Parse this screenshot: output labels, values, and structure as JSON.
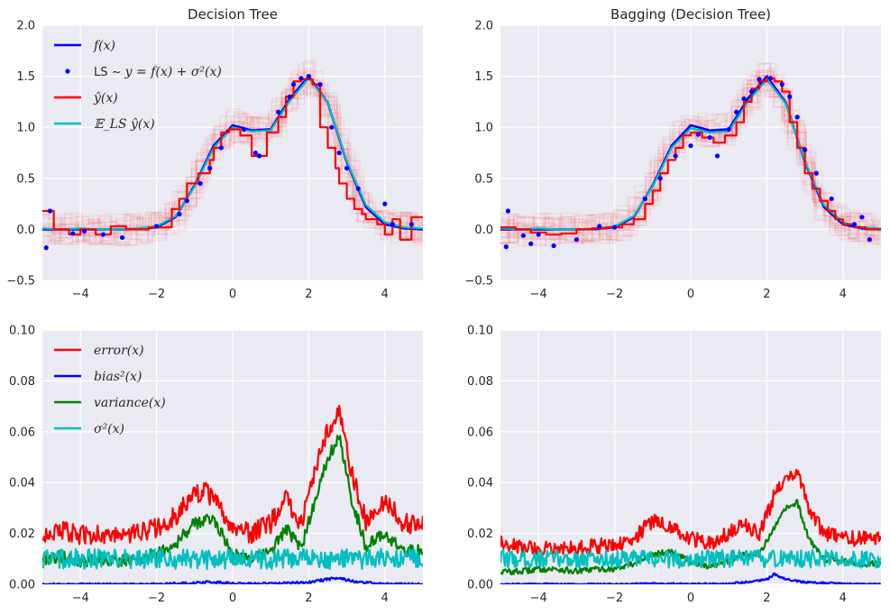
{
  "chart_data": [
    {
      "id": "p1",
      "type": "line",
      "title": "Decision Tree",
      "xlim": [
        -5,
        5
      ],
      "ylim": [
        -0.5,
        2.0
      ],
      "xticks": [
        -4,
        -2,
        0,
        2,
        4
      ],
      "xtick_labels": [
        "−4",
        "−2",
        "0",
        "2",
        "4"
      ],
      "yticks": [
        -0.5,
        0.0,
        0.5,
        1.0,
        1.5,
        2.0
      ],
      "ytick_labels": [
        "−0.5",
        "0.0",
        "0.5",
        "1.0",
        "1.5",
        "2.0"
      ],
      "legend": {
        "placement": "top-left",
        "entries": [
          {
            "label": "f(x)",
            "color": "#0000ff",
            "kind": "line"
          },
          {
            "label_prefix": "LS ~ ",
            "label": "y = f(x) + σ²(x)",
            "color": "#0000ff",
            "kind": "dot"
          },
          {
            "label": "ŷ(x)",
            "color": "#ff0000",
            "kind": "line"
          },
          {
            "label": "𝔼_LS ŷ(x)",
            "color": "#00bfbf",
            "kind": "line"
          }
        ]
      },
      "series": [
        {
          "name": "f(x)",
          "color": "#0000ff",
          "x": [
            -5,
            -4.5,
            -4,
            -3.5,
            -3,
            -2.5,
            -2,
            -1.5,
            -1,
            -0.5,
            0,
            0.5,
            1,
            1.5,
            2,
            2.5,
            3,
            3.5,
            4,
            4.5,
            5
          ],
          "values": [
            0,
            0,
            0,
            0,
            0,
            0.003,
            0.02,
            0.12,
            0.43,
            0.82,
            1.02,
            0.97,
            0.98,
            1.28,
            1.5,
            1.24,
            0.66,
            0.22,
            0.05,
            0.01,
            0
          ]
        },
        {
          "name": "E_LS y_hat(x)",
          "color": "#00bfbf",
          "x": [
            -5,
            -4.5,
            -4,
            -3.5,
            -3,
            -2.5,
            -2,
            -1.5,
            -1,
            -0.5,
            0,
            0.5,
            1,
            1.5,
            2,
            2.5,
            3,
            3.5,
            4,
            4.5,
            5
          ],
          "values": [
            0.01,
            0.0,
            0.01,
            0.0,
            0.0,
            0.01,
            0.03,
            0.13,
            0.42,
            0.8,
            1.0,
            0.96,
            0.97,
            1.26,
            1.48,
            1.24,
            0.67,
            0.24,
            0.07,
            0.02,
            0.01
          ]
        },
        {
          "name": "y_hat(x)",
          "color": "#ff0000",
          "step": true,
          "x": [
            -5,
            -4.7,
            -4.3,
            -4.0,
            -3.6,
            -3.2,
            -2.8,
            -2.2,
            -1.6,
            -1.4,
            -1.2,
            -0.9,
            -0.6,
            -0.5,
            -0.3,
            -0.1,
            0.2,
            0.5,
            0.9,
            1.2,
            1.4,
            1.6,
            1.8,
            2.1,
            2.3,
            2.5,
            2.7,
            2.8,
            3.0,
            3.2,
            3.4,
            3.5,
            3.8,
            4.0,
            4.2,
            4.4,
            4.7,
            5.0
          ],
          "values": [
            0.18,
            0.0,
            -0.05,
            0.0,
            -0.05,
            0.03,
            0.0,
            0.02,
            0.2,
            0.3,
            0.45,
            0.55,
            0.68,
            0.8,
            0.95,
            0.98,
            0.92,
            0.72,
            0.95,
            1.1,
            1.3,
            1.45,
            1.47,
            1.42,
            1.0,
            0.8,
            0.6,
            0.45,
            0.3,
            0.2,
            0.15,
            0.1,
            0.05,
            -0.05,
            0.1,
            -0.1,
            0.12,
            0.12
          ]
        }
      ],
      "scatter": {
        "name": "LS",
        "color": "#0000ff",
        "x": [
          -4.9,
          -4.8,
          -4.2,
          -3.9,
          -3.4,
          -2.9,
          -2.0,
          -1.4,
          -1.2,
          -0.85,
          -0.6,
          -0.3,
          0.3,
          0.6,
          0.7,
          1.2,
          1.5,
          1.6,
          1.8,
          2.0,
          2.3,
          2.6,
          2.8,
          3.0,
          3.3,
          4.0,
          4.2,
          4.7
        ],
        "y": [
          -0.18,
          0.18,
          -0.04,
          -0.02,
          -0.05,
          -0.08,
          0.03,
          0.15,
          0.28,
          0.45,
          0.6,
          0.8,
          0.98,
          0.75,
          0.72,
          1.15,
          1.3,
          1.42,
          1.48,
          1.5,
          1.42,
          1.0,
          0.75,
          0.6,
          0.4,
          0.25,
          0.05,
          0.05
        ]
      },
      "noise_lines": 22
    },
    {
      "id": "p2",
      "type": "line",
      "title": "Bagging (Decision Tree)",
      "xlim": [
        -5,
        5
      ],
      "ylim": [
        -0.5,
        2.0
      ],
      "xticks": [
        -4,
        -2,
        0,
        2,
        4
      ],
      "xtick_labels": [
        "−4",
        "−2",
        "0",
        "2",
        "4"
      ],
      "yticks": [
        -0.5,
        0.0,
        0.5,
        1.0,
        1.5,
        2.0
      ],
      "ytick_labels": [
        "−0.5",
        "0.0",
        "0.5",
        "1.0",
        "1.5",
        "2.0"
      ],
      "series": [
        {
          "name": "f(x)",
          "color": "#0000ff",
          "x": [
            -5,
            -4.5,
            -4,
            -3.5,
            -3,
            -2.5,
            -2,
            -1.5,
            -1,
            -0.5,
            0,
            0.5,
            1,
            1.5,
            2,
            2.5,
            3,
            3.5,
            4,
            4.5,
            5
          ],
          "values": [
            0,
            0,
            0,
            0,
            0,
            0.003,
            0.02,
            0.12,
            0.43,
            0.82,
            1.02,
            0.97,
            0.98,
            1.28,
            1.5,
            1.24,
            0.66,
            0.22,
            0.05,
            0.01,
            0
          ]
        },
        {
          "name": "E_LS y_hat(x)",
          "color": "#00bfbf",
          "x": [
            -5,
            -4.5,
            -4,
            -3.5,
            -3,
            -2.5,
            -2,
            -1.5,
            -1,
            -0.5,
            0,
            0.5,
            1,
            1.5,
            2,
            2.5,
            3,
            3.5,
            4,
            4.5,
            5
          ],
          "values": [
            0.01,
            0.0,
            0.01,
            0.0,
            0.0,
            0.01,
            0.03,
            0.13,
            0.42,
            0.8,
            0.99,
            0.95,
            0.96,
            1.25,
            1.47,
            1.23,
            0.67,
            0.24,
            0.07,
            0.02,
            0.01
          ]
        },
        {
          "name": "y_hat(x)",
          "color": "#ff0000",
          "step": true,
          "x": [
            -5,
            -4.6,
            -4.2,
            -3.8,
            -3.4,
            -3.0,
            -2.6,
            -2.2,
            -1.8,
            -1.5,
            -1.2,
            -1.0,
            -0.8,
            -0.6,
            -0.4,
            -0.2,
            0.0,
            0.3,
            0.6,
            0.9,
            1.2,
            1.4,
            1.6,
            1.8,
            2.0,
            2.2,
            2.4,
            2.6,
            2.8,
            3.0,
            3.2,
            3.4,
            3.6,
            3.8,
            4.0,
            4.3,
            4.6,
            5.0
          ],
          "values": [
            0.02,
            0.0,
            -0.03,
            -0.05,
            -0.04,
            0.0,
            0.01,
            0.02,
            0.05,
            0.1,
            0.25,
            0.38,
            0.55,
            0.68,
            0.8,
            0.92,
            0.95,
            0.9,
            0.85,
            0.92,
            1.05,
            1.25,
            1.38,
            1.45,
            1.48,
            1.45,
            1.35,
            1.05,
            0.8,
            0.55,
            0.4,
            0.28,
            0.18,
            0.1,
            0.05,
            0.02,
            0.0,
            0.0
          ]
        }
      ],
      "scatter": {
        "name": "LS",
        "color": "#0000ff",
        "x": [
          -4.85,
          -4.8,
          -4.4,
          -4.2,
          -4.0,
          -3.6,
          -3.0,
          -2.4,
          -2.0,
          -1.2,
          -0.8,
          -0.4,
          0.0,
          0.2,
          0.5,
          0.7,
          1.0,
          1.2,
          1.4,
          1.6,
          1.8,
          2.1,
          2.4,
          2.6,
          2.8,
          3.0,
          3.3,
          3.7,
          4.3,
          4.5,
          4.7
        ],
        "y": [
          -0.17,
          0.18,
          -0.06,
          -0.14,
          -0.05,
          -0.16,
          -0.1,
          0.03,
          0.02,
          0.3,
          0.5,
          0.72,
          0.82,
          0.93,
          0.9,
          0.72,
          0.98,
          1.15,
          1.28,
          1.35,
          1.47,
          1.48,
          1.42,
          1.3,
          1.1,
          0.78,
          0.55,
          0.3,
          0.05,
          0.12,
          -0.1
        ]
      },
      "noise_lines": 22
    },
    {
      "id": "p3",
      "type": "line",
      "title": "",
      "xlim": [
        -5,
        5
      ],
      "ylim": [
        0.0,
        0.1
      ],
      "xticks": [
        -4,
        -2,
        0,
        2,
        4
      ],
      "xtick_labels": [
        "−4",
        "−2",
        "0",
        "2",
        "4"
      ],
      "yticks": [
        0.0,
        0.02,
        0.04,
        0.06,
        0.08,
        0.1
      ],
      "ytick_labels": [
        "0.00",
        "0.02",
        "0.04",
        "0.06",
        "0.08",
        "0.10"
      ],
      "legend": {
        "placement": "top-left",
        "entries": [
          {
            "label": "error(x)",
            "color": "#ff0000",
            "kind": "line"
          },
          {
            "label": "bias²(x)",
            "color": "#0000ff",
            "kind": "line"
          },
          {
            "label": "variance(x)",
            "color": "#008000",
            "kind": "line"
          },
          {
            "label": "σ²(x)",
            "color": "#00bfbf",
            "kind": "line"
          }
        ]
      },
      "series": [
        {
          "name": "error(x)",
          "color": "#ff0000",
          "jitter": 0.004,
          "x": [
            -5,
            -4.5,
            -4,
            -3.5,
            -3,
            -2.5,
            -2,
            -1.5,
            -1,
            -0.7,
            -0.4,
            0,
            0.5,
            1,
            1.4,
            1.8,
            2.2,
            2.5,
            2.8,
            3.1,
            3.5,
            4,
            4.5,
            5
          ],
          "values": [
            0.02,
            0.021,
            0.019,
            0.02,
            0.019,
            0.02,
            0.022,
            0.027,
            0.035,
            0.037,
            0.031,
            0.022,
            0.02,
            0.024,
            0.034,
            0.024,
            0.046,
            0.06,
            0.07,
            0.046,
            0.025,
            0.033,
            0.024,
            0.023
          ]
        },
        {
          "name": "bias²(x)",
          "color": "#0000ff",
          "jitter": 0.0005,
          "x": [
            -5,
            -4,
            -3,
            -2,
            -1,
            -0.6,
            0,
            1,
            2,
            2.5,
            2.8,
            3.2,
            4,
            5
          ],
          "values": [
            0.0,
            0.0,
            0.0,
            0.0,
            0.0005,
            0.001,
            0.0003,
            0.0002,
            0.0008,
            0.002,
            0.0025,
            0.001,
            0.0002,
            0.0
          ]
        },
        {
          "name": "variance(x)",
          "color": "#008000",
          "jitter": 0.0025,
          "x": [
            -5,
            -4.5,
            -4,
            -3.5,
            -3,
            -2.5,
            -2,
            -1.5,
            -1,
            -0.5,
            0,
            0.5,
            1,
            1.4,
            1.8,
            2.2,
            2.5,
            2.8,
            3.1,
            3.5,
            4,
            4.5,
            5
          ],
          "values": [
            0.01,
            0.011,
            0.009,
            0.01,
            0.009,
            0.01,
            0.012,
            0.016,
            0.024,
            0.026,
            0.012,
            0.01,
            0.013,
            0.022,
            0.014,
            0.035,
            0.05,
            0.058,
            0.035,
            0.015,
            0.02,
            0.013,
            0.013
          ]
        },
        {
          "name": "σ²(x)",
          "color": "#00bfbf",
          "jitter": 0.004,
          "x": [
            -5,
            -2.5,
            0,
            2.5,
            5
          ],
          "values": [
            0.01,
            0.01,
            0.01,
            0.01,
            0.01
          ]
        }
      ]
    },
    {
      "id": "p4",
      "type": "line",
      "title": "",
      "xlim": [
        -5,
        5
      ],
      "ylim": [
        0.0,
        0.1
      ],
      "xticks": [
        -4,
        -2,
        0,
        2,
        4
      ],
      "xtick_labels": [
        "−4",
        "−2",
        "0",
        "2",
        "4"
      ],
      "yticks": [
        0.0,
        0.02,
        0.04,
        0.06,
        0.08,
        0.1
      ],
      "ytick_labels": [
        "0.00",
        "0.02",
        "0.04",
        "0.06",
        "0.08",
        "0.10"
      ],
      "series": [
        {
          "name": "error(x)",
          "color": "#ff0000",
          "jitter": 0.003,
          "x": [
            -5,
            -4.5,
            -4,
            -3.5,
            -3,
            -2.5,
            -2,
            -1.5,
            -1,
            -0.5,
            0,
            0.5,
            1,
            1.4,
            1.8,
            2.2,
            2.5,
            2.8,
            3.1,
            3.5,
            4,
            4.5,
            5
          ],
          "values": [
            0.016,
            0.015,
            0.014,
            0.015,
            0.014,
            0.015,
            0.016,
            0.018,
            0.025,
            0.022,
            0.018,
            0.016,
            0.02,
            0.024,
            0.02,
            0.035,
            0.04,
            0.045,
            0.03,
            0.02,
            0.018,
            0.018,
            0.018
          ]
        },
        {
          "name": "bias²(x)",
          "color": "#0000ff",
          "jitter": 0.0004,
          "x": [
            -5,
            -3,
            -1,
            0,
            1,
            2,
            2.2,
            2.5,
            3,
            4,
            5
          ],
          "values": [
            0.0,
            0.0,
            0.0002,
            0.0002,
            0.0001,
            0.002,
            0.004,
            0.002,
            0.0008,
            0.0002,
            0.0
          ]
        },
        {
          "name": "variance(x)",
          "color": "#008000",
          "jitter": 0.0012,
          "x": [
            -5,
            -4.5,
            -4,
            -3.5,
            -3,
            -2.5,
            -2,
            -1.5,
            -1,
            -0.5,
            0,
            0.5,
            1,
            1.4,
            1.8,
            2.2,
            2.5,
            2.8,
            3.1,
            3.5,
            4,
            4.5,
            5
          ],
          "values": [
            0.005,
            0.005,
            0.006,
            0.006,
            0.005,
            0.006,
            0.006,
            0.008,
            0.012,
            0.013,
            0.009,
            0.007,
            0.009,
            0.012,
            0.012,
            0.022,
            0.03,
            0.032,
            0.018,
            0.01,
            0.009,
            0.008,
            0.008
          ]
        },
        {
          "name": "σ²(x)",
          "color": "#00bfbf",
          "jitter": 0.0035,
          "x": [
            -5,
            -2.5,
            0,
            2.5,
            5
          ],
          "values": [
            0.01,
            0.01,
            0.01,
            0.01,
            0.01
          ]
        }
      ]
    }
  ]
}
